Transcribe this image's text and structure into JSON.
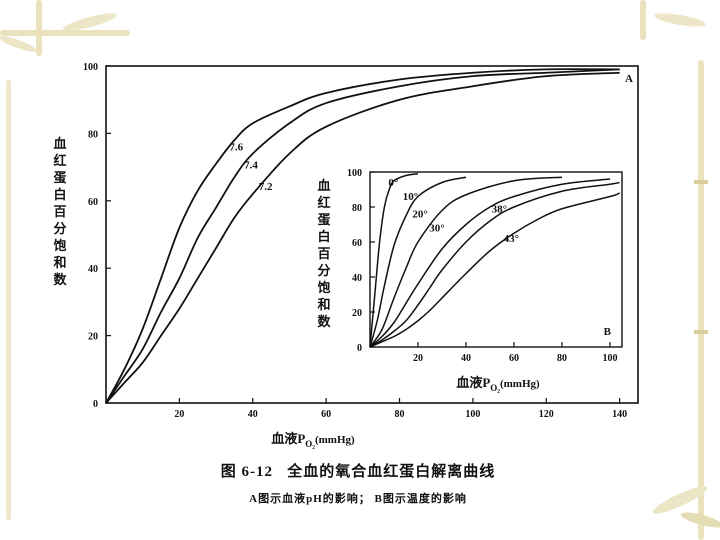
{
  "caption": {
    "number": "图 6-12",
    "title": "全血的氧合血红蛋白解离曲线",
    "subtitle": "A图示血液pH的影响； B图示温度的影响"
  },
  "colors": {
    "decoration": "#e9e2bd",
    "decoration_dark": "#d8cf9c",
    "ink": "#111111"
  },
  "chart_data": [
    {
      "type": "line",
      "panel_label": "A",
      "title": "",
      "xlabel": "血液P",
      "xlabel_sub": "O₂",
      "xlabel_unit": "(mmHg)",
      "ylabel": "血红蛋白百分饱和数",
      "xlim": [
        0,
        145
      ],
      "ylim": [
        0,
        100
      ],
      "xticks": [
        20,
        40,
        60,
        80,
        100,
        120,
        140
      ],
      "yticks": [
        0,
        20,
        40,
        60,
        80,
        100
      ],
      "grid": false,
      "series": [
        {
          "name": "7.6",
          "x": [
            0,
            5,
            10,
            15,
            20,
            25,
            30,
            35,
            40,
            50,
            60,
            80,
            100,
            120,
            140
          ],
          "y": [
            0,
            10,
            22,
            37,
            52,
            63,
            71,
            78,
            83,
            88,
            92,
            96,
            98,
            99,
            99
          ]
        },
        {
          "name": "7.4",
          "x": [
            0,
            5,
            10,
            15,
            20,
            25,
            30,
            35,
            40,
            50,
            60,
            80,
            100,
            120,
            140
          ],
          "y": [
            0,
            8,
            16,
            27,
            37,
            49,
            58,
            67,
            74,
            83,
            89,
            94,
            97,
            98,
            99
          ]
        },
        {
          "name": "7.2",
          "x": [
            0,
            5,
            10,
            15,
            20,
            25,
            30,
            35,
            40,
            50,
            60,
            80,
            100,
            120,
            140
          ],
          "y": [
            0,
            6,
            12,
            20,
            28,
            37,
            46,
            55,
            62,
            74,
            82,
            90,
            94,
            97,
            98
          ]
        }
      ]
    },
    {
      "type": "line",
      "panel_label": "B",
      "title": "",
      "xlabel": "血液P",
      "xlabel_sub": "O₂",
      "xlabel_unit": "(mmHg)",
      "ylabel": "血红蛋白百分饱和数",
      "xlim": [
        0,
        105
      ],
      "ylim": [
        0,
        100
      ],
      "xticks": [
        20,
        40,
        60,
        80,
        100
      ],
      "yticks": [
        0,
        20,
        40,
        60,
        80,
        100
      ],
      "grid": false,
      "series": [
        {
          "name": "0°",
          "x": [
            0,
            2,
            4,
            6,
            8,
            10,
            15,
            20
          ],
          "y": [
            0,
            30,
            60,
            80,
            90,
            95,
            98,
            99
          ]
        },
        {
          "name": "10°",
          "x": [
            0,
            3,
            6,
            10,
            15,
            20,
            30,
            40
          ],
          "y": [
            0,
            15,
            35,
            58,
            75,
            86,
            94,
            97
          ]
        },
        {
          "name": "20°",
          "x": [
            0,
            5,
            10,
            15,
            20,
            30,
            40,
            60,
            80
          ],
          "y": [
            0,
            10,
            28,
            45,
            60,
            78,
            87,
            95,
            97
          ]
        },
        {
          "name": "30°",
          "x": [
            0,
            5,
            10,
            15,
            20,
            30,
            40,
            50,
            60,
            80,
            100
          ],
          "y": [
            0,
            6,
            14,
            25,
            36,
            56,
            70,
            80,
            86,
            93,
            96
          ]
        },
        {
          "name": "38°",
          "x": [
            0,
            5,
            10,
            15,
            20,
            25,
            30,
            40,
            50,
            60,
            80,
            100,
            104
          ],
          "y": [
            0,
            4,
            9,
            15,
            24,
            34,
            44,
            60,
            72,
            80,
            89,
            93,
            94
          ]
        },
        {
          "name": "43°",
          "x": [
            0,
            5,
            10,
            15,
            20,
            25,
            30,
            40,
            50,
            60,
            70,
            80,
            100,
            104
          ],
          "y": [
            0,
            3,
            6,
            10,
            15,
            21,
            28,
            42,
            55,
            65,
            73,
            79,
            86,
            88
          ]
        }
      ]
    }
  ]
}
